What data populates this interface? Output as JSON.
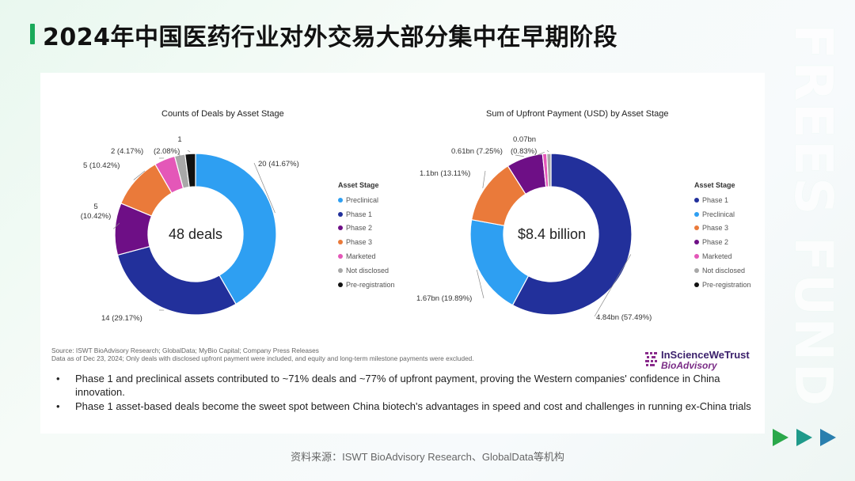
{
  "page": {
    "title": "2024年中国医药行业对外交易大部分集中在早期阶段",
    "watermark": "FREES FUND",
    "footer": "资料来源：ISWT BioAdvisory Research、GlobalData等机构"
  },
  "source": {
    "line1": "Source: ISWT BioAdvisory Research; GlobalData; MyBio Capital; Company Press Releases",
    "line2": "Data as of Dec 23, 2024; Only deals with disclosed upfront payment were included, and equity and long-term milestone payments were excluded."
  },
  "brand": {
    "name": "InScienceWeTrust",
    "sub": "BioAdvisory"
  },
  "bullets": [
    "Phase 1 and preclinical assets contributed to ~71% deals and ~77% of upfront payment, proving the Western companies' confidence in China innovation.",
    "Phase 1 asset-based deals become the sweet spot between China biotech's advantages in speed and cost and challenges in running ex-China trials"
  ],
  "colors": {
    "Preclinical": "#2e9ff2",
    "Phase 1": "#22309b",
    "Phase 2": "#6e0f86",
    "Phase 3": "#ea7a3a",
    "Marketed": "#e457b8",
    "Not disclosed": "#a8a8a8",
    "Pre-registration": "#111111"
  },
  "chart_data": [
    {
      "type": "pie",
      "donut": true,
      "title": "Counts of Deals by Asset Stage",
      "center_label": "48 deals",
      "legend_title": "Asset Stage",
      "legend_placement": "right",
      "legend": [
        "Preclinical",
        "Phase 1",
        "Phase 2",
        "Phase 3",
        "Marketed",
        "Not disclosed",
        "Pre-registration"
      ],
      "slices": [
        {
          "name": "Preclinical",
          "value": 20,
          "label": "20 (41.67%)"
        },
        {
          "name": "Phase 1",
          "value": 14,
          "label": "14 (29.17%)"
        },
        {
          "name": "Phase 2",
          "value": 5,
          "label": "5\n(10.42%)"
        },
        {
          "name": "Phase 3",
          "value": 5,
          "label": "5 (10.42%)"
        },
        {
          "name": "Marketed",
          "value": 2,
          "label": "2 (4.17%)"
        },
        {
          "name": "Not disclosed",
          "value": 1,
          "label": "(2.08%)"
        },
        {
          "name": "Pre-registration",
          "value": 1,
          "label": "1"
        }
      ]
    },
    {
      "type": "pie",
      "donut": true,
      "title": "Sum of Upfront Payment (USD) by Asset Stage",
      "center_label": "$8.4 billion",
      "legend_title": "Asset Stage",
      "legend_placement": "right",
      "legend": [
        "Phase 1",
        "Preclinical",
        "Phase 3",
        "Phase 2",
        "Marketed",
        "Not disclosed",
        "Pre-registration"
      ],
      "slices": [
        {
          "name": "Phase 1",
          "value": 4.84,
          "label": "4.84bn (57.49%)"
        },
        {
          "name": "Preclinical",
          "value": 1.67,
          "label": "1.67bn (19.89%)"
        },
        {
          "name": "Phase 3",
          "value": 1.1,
          "label": "1.1bn (13.11%)"
        },
        {
          "name": "Phase 2",
          "value": 0.61,
          "label": "0.61bn (7.25%)"
        },
        {
          "name": "Marketed",
          "value": 0.07,
          "label": "(0.83%)"
        },
        {
          "name": "Not disclosed",
          "value": 0.07,
          "label": "0.07bn"
        }
      ]
    }
  ]
}
